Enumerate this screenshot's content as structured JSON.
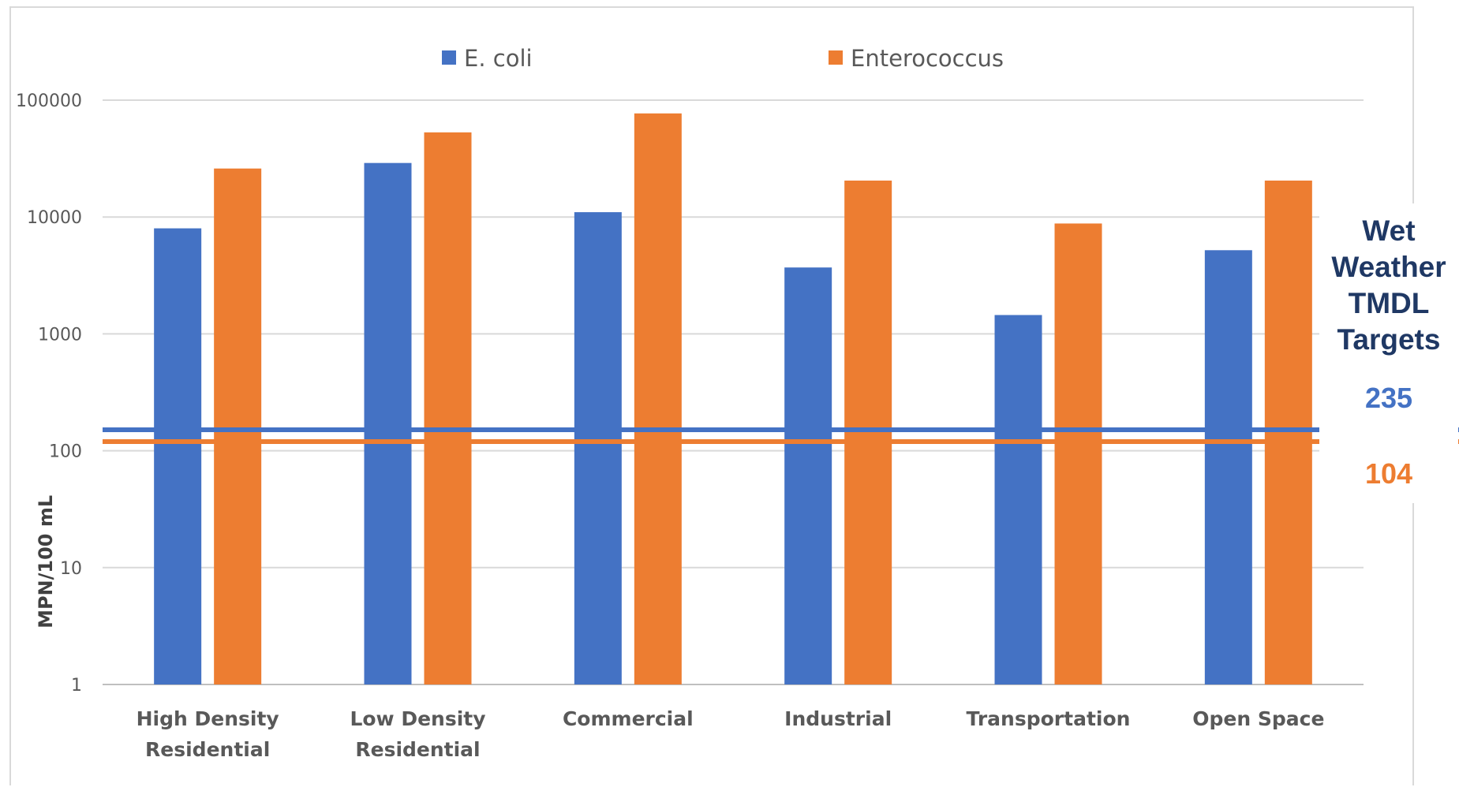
{
  "chart_data": {
    "type": "bar",
    "yscale": "log",
    "ylim": [
      1,
      100000
    ],
    "yticks": [
      "1",
      "10",
      "100",
      "1000",
      "10000",
      "100000"
    ],
    "ylabel": "MPN/100 mL",
    "xlabel": "",
    "categories": [
      [
        "High Density",
        "Residential"
      ],
      [
        "Low Density",
        "Residential"
      ],
      [
        "Commercial"
      ],
      [
        "Industrial"
      ],
      [
        "Transportation"
      ],
      [
        "Open Space"
      ]
    ],
    "series": [
      {
        "name": "E. coli",
        "color": "#4472c4",
        "values": [
          8000,
          29000,
          11000,
          3700,
          1450,
          5200
        ]
      },
      {
        "name": "Enterococcus",
        "color": "#ed7d31",
        "values": [
          26000,
          53000,
          77000,
          20500,
          8800,
          20500
        ]
      }
    ],
    "legend_position": "top",
    "grid": true,
    "reference_lines": [
      {
        "series": "E. coli",
        "value": 235,
        "label": "235",
        "color": "#4472c4"
      },
      {
        "series": "Enterococcus",
        "value": 104,
        "label": "104",
        "color": "#ed7d31"
      }
    ],
    "annotation_title": [
      "Wet",
      "Weather",
      "TMDL",
      "Targets"
    ]
  }
}
